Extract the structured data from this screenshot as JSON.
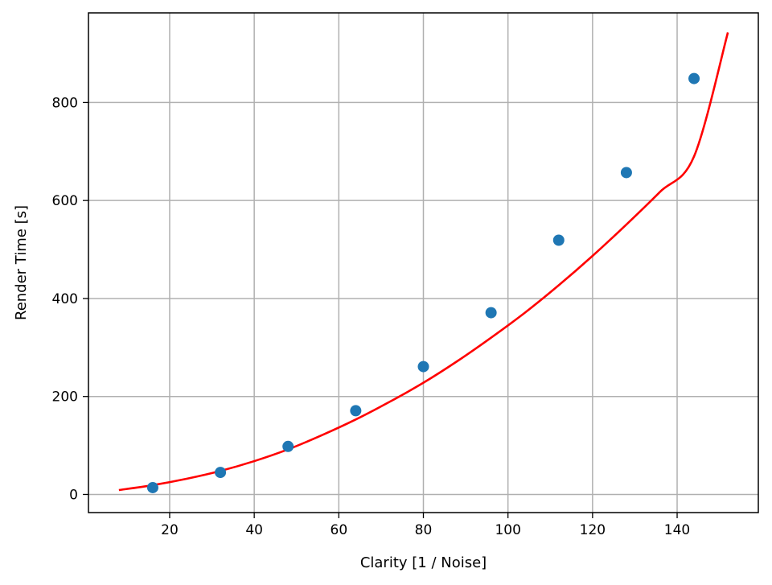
{
  "chart_data": {
    "type": "scatter",
    "title": "",
    "xlabel": "Clarity [1 / Noise]",
    "ylabel": "Render Time [s]",
    "xlim": [
      0.8,
      159.2
    ],
    "ylim": [
      -37,
      983
    ],
    "xticks": [
      20,
      40,
      60,
      80,
      100,
      120,
      140
    ],
    "yticks": [
      0,
      200,
      400,
      600,
      800
    ],
    "grid": true,
    "legend": "none",
    "series": [
      {
        "kind": "scatter",
        "color": "#1f77b4",
        "x": [
          16,
          32,
          48,
          64,
          80,
          96,
          112,
          128,
          144
        ],
        "y": [
          14,
          45,
          98,
          171,
          261,
          371,
          519,
          657,
          849
        ]
      },
      {
        "kind": "line",
        "color": "#ff0000",
        "x": [
          8,
          16,
          24,
          32,
          40,
          48,
          56,
          64,
          72,
          80,
          88,
          96,
          104,
          112,
          120,
          128,
          136,
          144,
          152
        ],
        "y": [
          9,
          19,
          32,
          48,
          68,
          92,
          121,
          153,
          189,
          228,
          272,
          320,
          371,
          427,
          487,
          551,
          618,
          690,
          943
        ]
      }
    ]
  }
}
